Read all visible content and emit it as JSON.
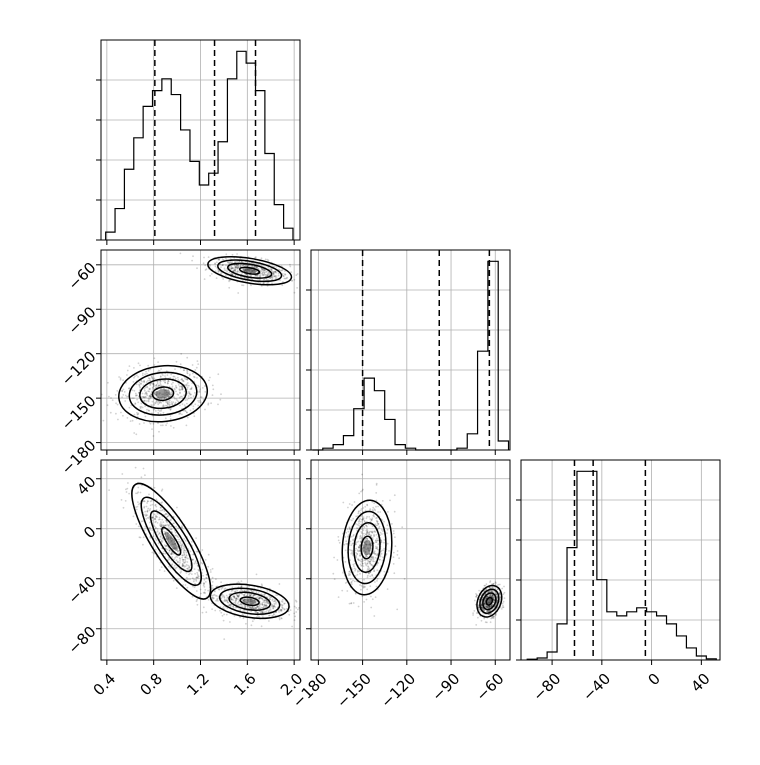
{
  "chart_data": [
    {
      "type": "histogram",
      "panel": "hist-param-0",
      "grid": true,
      "xlim": [
        0.35,
        2.05
      ],
      "bin_edges": [
        0.39,
        0.47,
        0.55,
        0.63,
        0.71,
        0.79,
        0.87,
        0.95,
        1.03,
        1.11,
        1.19,
        1.27,
        1.35,
        1.43,
        1.51,
        1.59,
        1.67,
        1.75,
        1.83,
        1.91,
        1.99
      ],
      "counts": [
        2,
        8,
        18,
        26,
        34,
        38,
        41,
        37,
        28,
        20,
        14,
        17,
        25,
        41,
        48,
        45,
        38,
        22,
        9,
        3
      ],
      "quantile_lines": [
        0.81,
        1.32,
        1.67
      ],
      "x_ticks": [
        "0.4",
        "0.8",
        "1.2",
        "1.6",
        "2.0"
      ]
    },
    {
      "type": "histogram",
      "panel": "hist-param-1",
      "grid": true,
      "xlim": [
        -185,
        -50
      ],
      "bin_edges": [
        -184,
        -177,
        -170,
        -163,
        -156,
        -149,
        -142,
        -135,
        -128,
        -121,
        -114,
        -107,
        -100,
        -93,
        -86,
        -79,
        -72,
        -65,
        -58,
        -51
      ],
      "counts": [
        0,
        1,
        3,
        8,
        23,
        40,
        33,
        17,
        3,
        1,
        0,
        0,
        0,
        0,
        1,
        9,
        55,
        105,
        5
      ],
      "quantile_lines": [
        -150,
        -98,
        -64
      ],
      "x_ticks": [
        "-180",
        "-150",
        "-120",
        "-90",
        "-60"
      ],
      "y_ticks": [
        "-180",
        "-150",
        "-120",
        "-90",
        "-60"
      ]
    },
    {
      "type": "histogram",
      "panel": "hist-param-2",
      "grid": true,
      "xlim": [
        -105,
        55
      ],
      "bin_edges": [
        -100,
        -92,
        -84,
        -76,
        -68,
        -60,
        -52,
        -44,
        -36,
        -28,
        -20,
        -12,
        -4,
        4,
        12,
        20,
        28,
        36,
        44,
        52
      ],
      "counts": [
        0.2,
        0.5,
        2,
        9,
        28,
        47,
        47,
        20,
        12,
        11,
        12,
        13,
        12,
        11,
        9,
        6,
        3,
        1,
        0.3
      ],
      "quantile_lines": [
        -62,
        -47,
        -5
      ],
      "x_ticks": [
        "-80",
        "-40",
        "0",
        "40"
      ],
      "y_ticks": [
        "-80",
        "-40",
        "0",
        "40"
      ]
    },
    {
      "type": "scatter",
      "panel": "joint-1-vs-0",
      "clusters": [
        {
          "cx": 1.62,
          "cy": -64,
          "sx": 0.17,
          "sy": 4.5,
          "rho": -0.45
        },
        {
          "cx": 0.88,
          "cy": -147,
          "sx": 0.18,
          "sy": 9,
          "rho": 0.1
        }
      ],
      "xlim": [
        0.35,
        2.05
      ],
      "ylim": [
        -185,
        -50
      ]
    },
    {
      "type": "scatter",
      "panel": "joint-2-vs-0",
      "clusters": [
        {
          "cx": 0.95,
          "cy": -10,
          "sx": 0.16,
          "sy": 22,
          "rho": -0.82
        },
        {
          "cx": 1.62,
          "cy": -58,
          "sx": 0.16,
          "sy": 6.5,
          "rho": -0.3
        }
      ],
      "xlim": [
        0.35,
        2.05
      ],
      "ylim": [
        -105,
        55
      ]
    },
    {
      "type": "scatter",
      "panel": "joint-2-vs-1",
      "clusters": [
        {
          "cx": -147,
          "cy": -15,
          "sx": 8,
          "sy": 18,
          "rho": 0.1
        },
        {
          "cx": -64,
          "cy": -58,
          "sx": 4,
          "sy": 6,
          "rho": 0.25
        }
      ],
      "xlim": [
        -185,
        -50
      ],
      "ylim": [
        -105,
        55
      ]
    }
  ]
}
